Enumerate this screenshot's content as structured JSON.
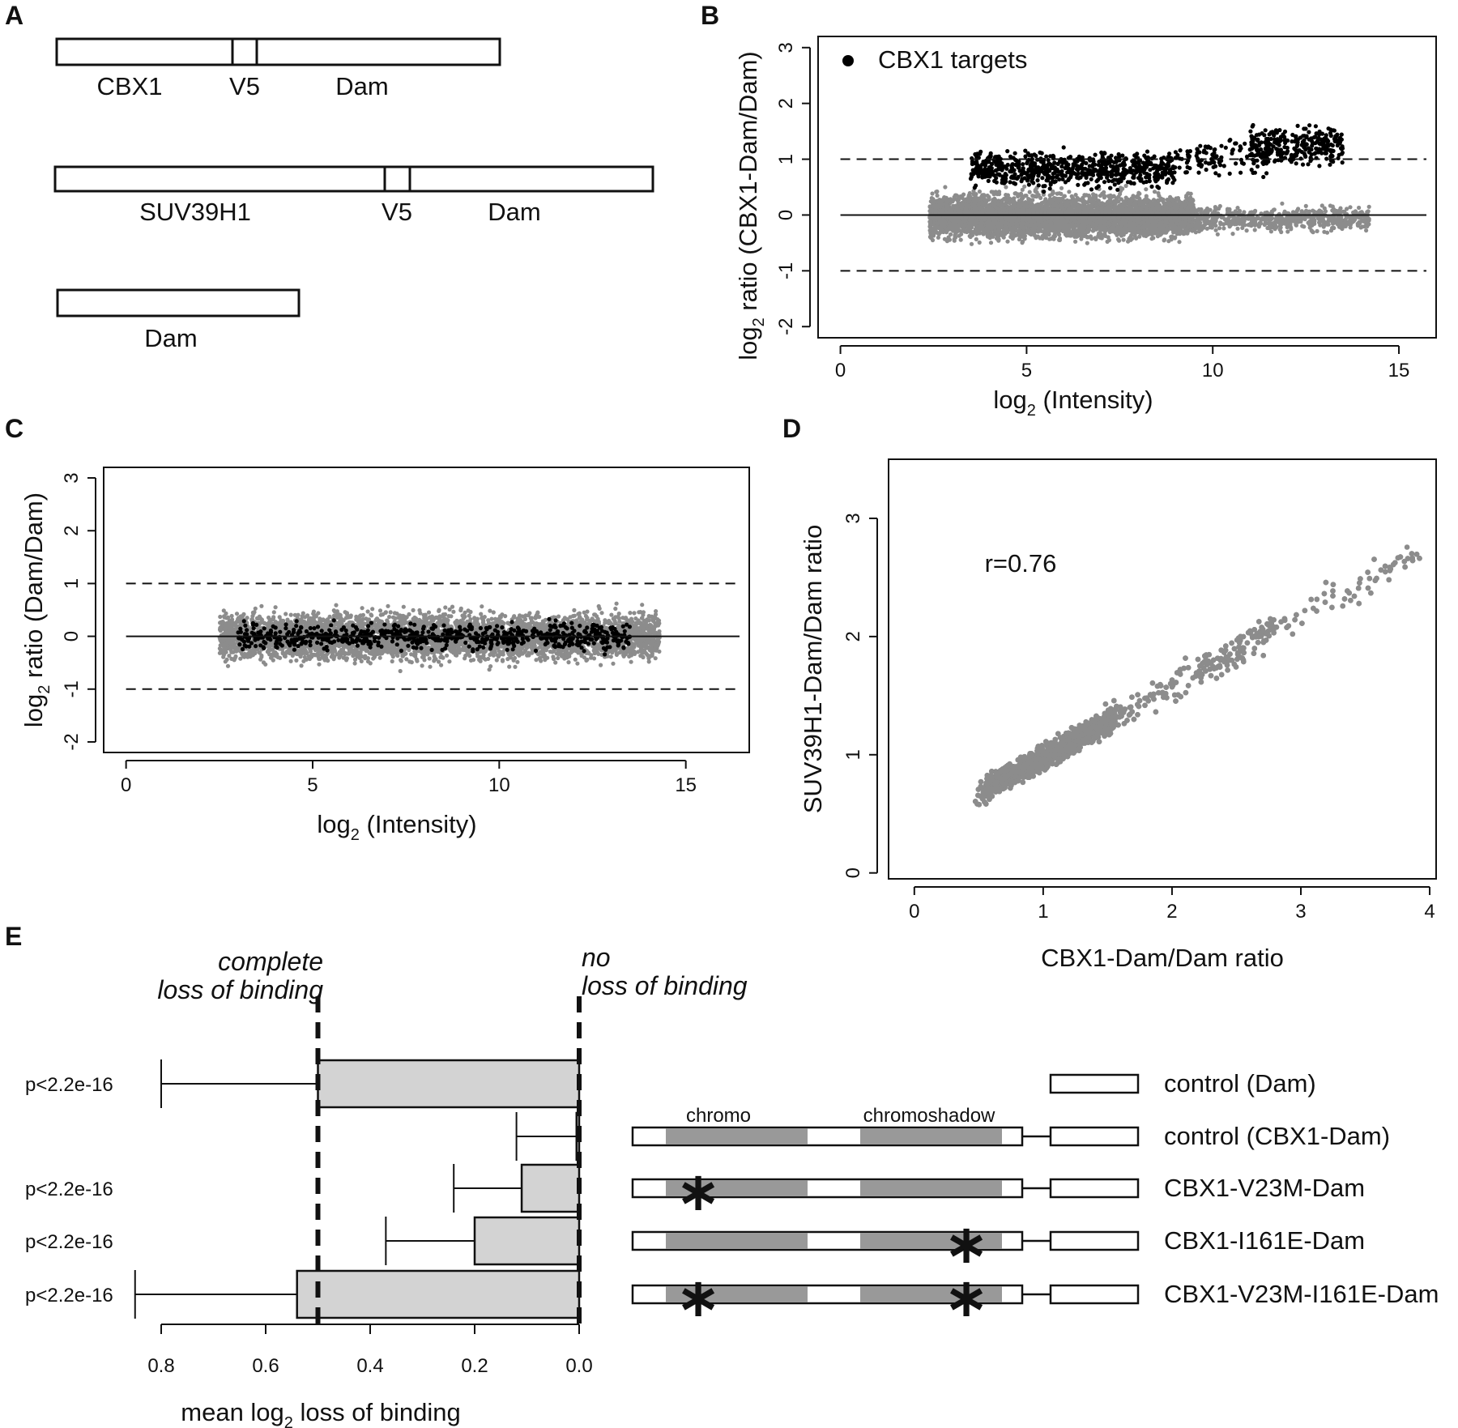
{
  "colors": {
    "ink": "#111111",
    "grey_point": "#8c8c8c",
    "bar_fill": "#d3d3d3",
    "domain_fill": "#999999"
  },
  "panels": {
    "A": {
      "letter": "A",
      "constructs": [
        {
          "segments": [
            "CBX1",
            "V5",
            "Dam"
          ]
        },
        {
          "segments": [
            "SUV39H1",
            "V5",
            "Dam"
          ]
        },
        {
          "segments": [
            "Dam"
          ]
        }
      ]
    },
    "B": {
      "letter": "B"
    },
    "C": {
      "letter": "C"
    },
    "D": {
      "letter": "D"
    },
    "E": {
      "letter": "E"
    }
  },
  "chart_data": [
    {
      "panel": "B",
      "type": "scatter",
      "xlabel_base": "log",
      "xlabel_sub": "2",
      "xlabel_rest": " (Intensity)",
      "ylabel_base": "log",
      "ylabel_sub": "2",
      "ylabel_rest": " ratio (CBX1-Dam/Dam)",
      "xlim": [
        -0.6,
        16
      ],
      "ylim": [
        -2.2,
        3.2
      ],
      "xticks": [
        "0",
        "5",
        "10",
        "15"
      ],
      "yticks": [
        "-2",
        "-1",
        "0",
        "1",
        "2",
        "3"
      ],
      "legend": {
        "label": "CBX1 targets",
        "position": "top-left"
      },
      "hlines": [
        {
          "y": 0,
          "style": "solid"
        },
        {
          "y": 1,
          "style": "dashed"
        },
        {
          "y": -1,
          "style": "dashed"
        }
      ],
      "series": [
        {
          "name": "CBX1 targets",
          "color": "#000000",
          "clusters": [
            {
              "x": [
                3.5,
                9.0
              ],
              "y": [
                0.45,
                1.2
              ],
              "n": 700
            },
            {
              "x": [
                9.0,
                11.5
              ],
              "y": [
                0.6,
                1.5
              ],
              "n": 120
            },
            {
              "x": [
                11.0,
                13.5
              ],
              "y": [
                0.8,
                1.7
              ],
              "n": 300
            }
          ]
        },
        {
          "color": "#8c8c8c",
          "clusters": [
            {
              "x": [
                2.4,
                9.5
              ],
              "y": [
                -0.5,
                0.45
              ],
              "n": 4500
            },
            {
              "x": [
                9.5,
                14.2
              ],
              "y": [
                -0.35,
                0.2
              ],
              "n": 600
            }
          ]
        }
      ]
    },
    {
      "panel": "C",
      "type": "scatter",
      "xlabel_base": "log",
      "xlabel_sub": "2",
      "xlabel_rest": " (Intensity)",
      "ylabel_base": "log",
      "ylabel_sub": "2",
      "ylabel_rest": " ratio (Dam/Dam)",
      "xlim": [
        -0.6,
        16.7
      ],
      "ylim": [
        -2.2,
        3.2
      ],
      "xticks": [
        "0",
        "5",
        "10",
        "15"
      ],
      "yticks": [
        "-2",
        "-1",
        "0",
        "1",
        "2",
        "3"
      ],
      "hlines": [
        {
          "y": 0,
          "style": "solid"
        },
        {
          "y": 1,
          "style": "dashed"
        },
        {
          "y": -1,
          "style": "dashed"
        }
      ],
      "series": [
        {
          "color": "#8c8c8c",
          "clusters": [
            {
              "x": [
                2.5,
                14.3
              ],
              "y": [
                -0.55,
                0.55
              ],
              "n": 4500
            }
          ]
        },
        {
          "color": "#000000",
          "clusters": [
            {
              "x": [
                3.0,
                13.5
              ],
              "y": [
                -0.3,
                0.3
              ],
              "n": 700
            }
          ]
        }
      ]
    },
    {
      "panel": "D",
      "type": "scatter",
      "xlabel": "CBX1-Dam/Dam ratio",
      "ylabel": "SUV39H1-Dam/Dam ratio",
      "annotation": "r=0.76",
      "xlim": [
        -0.2,
        4.05
      ],
      "ylim": [
        -0.05,
        3.5
      ],
      "xticks": [
        "0",
        "1",
        "2",
        "3",
        "4"
      ],
      "yticks": [
        "0",
        "1",
        "2",
        "3"
      ],
      "series": [
        {
          "color": "#8c8c8c",
          "trend": {
            "slope": 0.6,
            "intercept": 0.38
          },
          "range_x": [
            0.1,
            3.95
          ],
          "n": 3500
        }
      ]
    },
    {
      "panel": "E",
      "type": "bar",
      "xlabel_base": "mean log",
      "xlabel_sub": "2",
      "xlabel_rest": " loss of binding",
      "xlim": [
        0.0,
        0.8
      ],
      "reversed_axis": true,
      "xticks": [
        "0.8",
        "0.6",
        "0.4",
        "0.2",
        "0.0"
      ],
      "vlines": [
        {
          "x": 0.5,
          "label_lines": [
            "complete",
            "loss of binding"
          ]
        },
        {
          "x": 0.0,
          "label_lines": [
            "no",
            "loss of binding"
          ]
        }
      ],
      "categories": [
        "control (Dam)",
        "control (CBX1-Dam)",
        "CBX1-V23M-Dam",
        "CBX1-I161E-Dam",
        "CBX1-V23M-I161E-Dam"
      ],
      "values": [
        0.5,
        0.005,
        0.11,
        0.2,
        0.54
      ],
      "error": [
        0.8,
        0.12,
        0.24,
        0.37,
        0.85
      ],
      "pvalues": [
        "p<2.2e-16",
        "",
        "p<2.2e-16",
        "p<2.2e-16",
        "p<2.2e-16"
      ],
      "domain_labels": [
        "chromo",
        "chromoshadow"
      ],
      "mutations": [
        [],
        [],
        [
          "chromo"
        ],
        [
          "chromoshadow"
        ],
        [
          "chromo",
          "chromoshadow"
        ]
      ]
    }
  ]
}
